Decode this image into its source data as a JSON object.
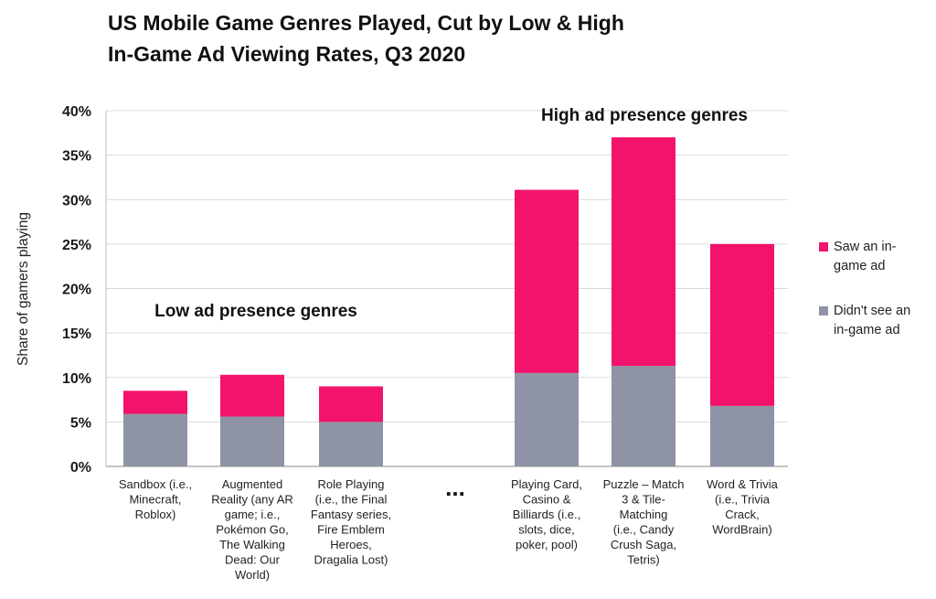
{
  "chart_data": {
    "type": "bar",
    "stacked": true,
    "title_lines": [
      "US Mobile Game Genres Played, Cut by Low & High",
      "In-Game Ad Viewing Rates, Q3 2020"
    ],
    "ylabel": "Share of gamers playing",
    "xlabel": "",
    "ylim": [
      0,
      40
    ],
    "yticks": [
      0,
      5,
      10,
      15,
      20,
      25,
      30,
      35,
      40
    ],
    "ytick_labels": [
      "0%",
      "5%",
      "10%",
      "15%",
      "20%",
      "25%",
      "30%",
      "35%",
      "40%"
    ],
    "grid": true,
    "legend_position": "right",
    "categories": [
      [
        "Sandbox (i.e.,",
        "Minecraft,",
        "Roblox)"
      ],
      [
        "Augmented",
        "Reality (any AR",
        "game; i.e.,",
        "Pokémon Go,",
        "The Walking",
        "Dead: Our",
        "World)"
      ],
      [
        "Role Playing",
        "(i.e., the Final",
        "Fantasy series,",
        "Fire Emblem",
        "Heroes,",
        "Dragalia Lost)"
      ],
      [
        "Playing Card,",
        "Casino &",
        "Billiards (i.e.,",
        "slots, dice,",
        "poker, pool)"
      ],
      [
        "Puzzle – Match",
        "3 & Tile-",
        "Matching",
        "(i.e., Candy",
        "Crush Saga,",
        "Tetris)"
      ],
      [
        "Word & Trivia",
        "(i.e., Trivia",
        "Crack,",
        "WordBrain)"
      ]
    ],
    "series": [
      {
        "name": "Didn't see an in-game ad",
        "legend_lines": [
          "Didn't see an",
          "in-game ad"
        ],
        "color": "#8e94a6",
        "values": [
          5.9,
          5.6,
          5.0,
          10.5,
          11.3,
          6.8
        ]
      },
      {
        "name": "Saw an in-game ad",
        "legend_lines": [
          "Saw an in-",
          "game ad"
        ],
        "color": "#f2136c",
        "values": [
          2.6,
          4.7,
          4.0,
          20.6,
          25.7,
          18.2
        ]
      }
    ],
    "annotations": {
      "low_group": "Low ad presence genres",
      "high_group": "High ad presence genres",
      "gap": "..."
    }
  }
}
